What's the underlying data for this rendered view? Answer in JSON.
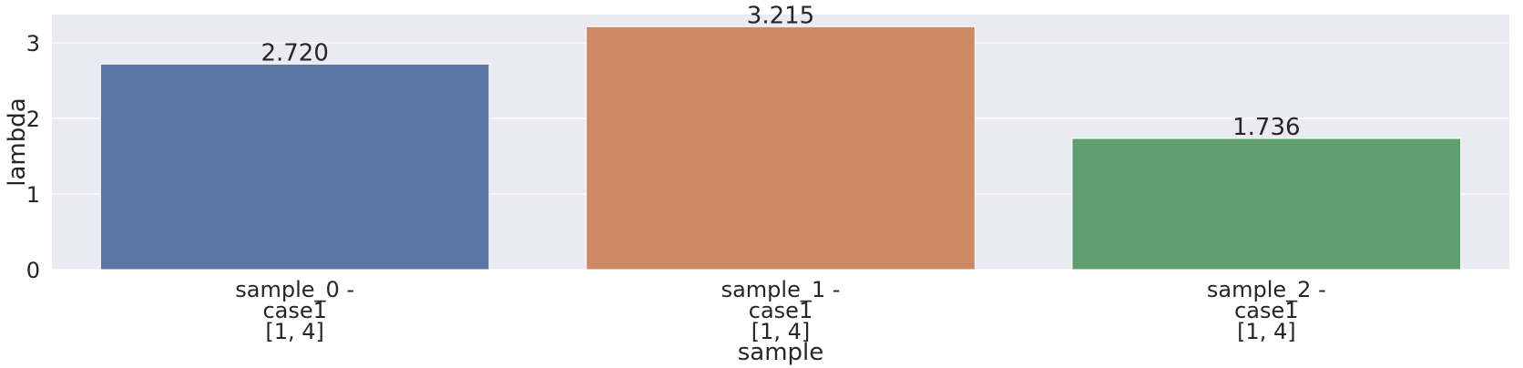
{
  "chart_data": {
    "type": "bar",
    "title": "",
    "xlabel": "sample",
    "ylabel": "lambda",
    "categories": [
      [
        "sample_0 -",
        "case1",
        "[1, 4]"
      ],
      [
        "sample_1 -",
        "case1",
        "[1, 4]"
      ],
      [
        "sample_2 -",
        "case1",
        "[1, 4]"
      ]
    ],
    "values": [
      2.72,
      3.215,
      1.736
    ],
    "value_labels": [
      "2.720",
      "3.215",
      "1.736"
    ],
    "ylim": [
      0,
      3.375
    ],
    "yticks": [
      0,
      1,
      2,
      3
    ],
    "grid": true,
    "legend": "none",
    "colors": [
      "#5875a4",
      "#cc8963",
      "#5f9e6e"
    ],
    "background": "#eaeaf2",
    "gridline_color": "#ffffff"
  }
}
